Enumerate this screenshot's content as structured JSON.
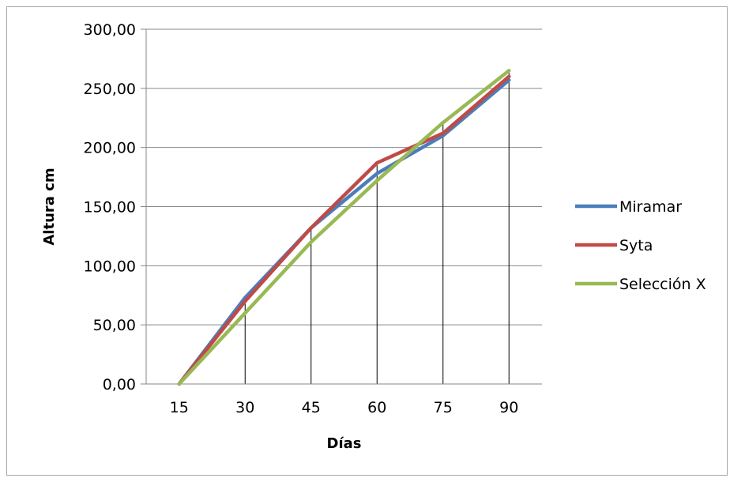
{
  "chart_data": {
    "type": "line",
    "title": "",
    "xlabel": "Días",
    "ylabel": "Altura cm",
    "categories": [
      "15",
      "30",
      "45",
      "60",
      "75",
      "90"
    ],
    "ylim": [
      0,
      300
    ],
    "yticks": [
      "0,00",
      "50,00",
      "100,00",
      "150,00",
      "200,00",
      "250,00",
      "300,00"
    ],
    "grid": "horizontal",
    "drop_lines": true,
    "legend_position": "right",
    "series": [
      {
        "name": "Miramar",
        "color": "#4a7ebb",
        "values": [
          0,
          73,
          132,
          178,
          210,
          257
        ]
      },
      {
        "name": "Syta",
        "color": "#be4b48",
        "values": [
          0,
          70,
          132,
          187,
          212,
          260
        ]
      },
      {
        "name": "Selección X",
        "color": "#98b954",
        "values": [
          0,
          60,
          120,
          172,
          221,
          265
        ]
      }
    ]
  }
}
